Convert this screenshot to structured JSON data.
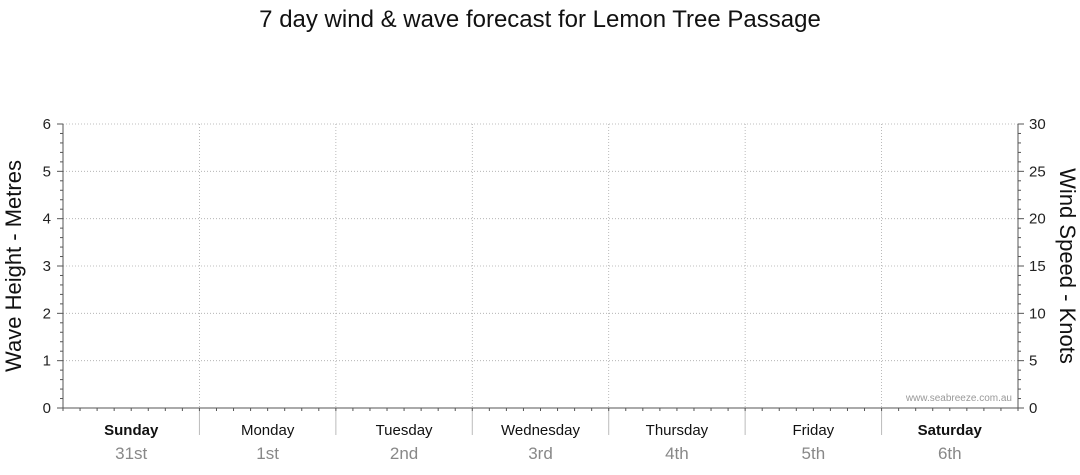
{
  "chart_data": {
    "type": "line",
    "title": "7 day wind & wave forecast for Lemon Tree Passage",
    "ylabel": "Wave Height - Metres",
    "y2label": "Wind Speed - Knots",
    "ylim": [
      0,
      6
    ],
    "y2lim": [
      0,
      30
    ],
    "yticks": [
      "0",
      "1",
      "2",
      "3",
      "4",
      "5",
      "6"
    ],
    "y2ticks": [
      "0",
      "5",
      "10",
      "15",
      "20",
      "25",
      "30"
    ],
    "grid": true,
    "days": [
      {
        "name": "Sunday",
        "date": "31st",
        "bold": true
      },
      {
        "name": "Monday",
        "date": "1st",
        "bold": false
      },
      {
        "name": "Tuesday",
        "date": "2nd",
        "bold": false
      },
      {
        "name": "Wednesday",
        "date": "3rd",
        "bold": false
      },
      {
        "name": "Thursday",
        "date": "4th",
        "bold": false
      },
      {
        "name": "Friday",
        "date": "5th",
        "bold": false
      },
      {
        "name": "Saturday",
        "date": "6th",
        "bold": true
      }
    ],
    "series": [],
    "watermark": "www.seabreeze.com.au"
  }
}
